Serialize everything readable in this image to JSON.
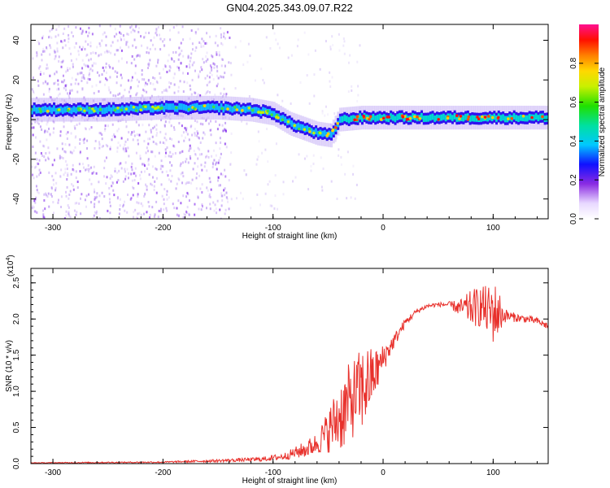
{
  "title": "GN04.2025.343.09.07.R22",
  "chart_data": [
    {
      "type": "heatmap",
      "name": "Spectrogram",
      "xlabel": "Height of straight line (km)",
      "ylabel": "Frequency (Hz)",
      "xlim": [
        -320,
        150
      ],
      "ylim": [
        -50,
        48
      ],
      "x_ticks": [
        -300,
        -200,
        -100,
        0,
        100
      ],
      "y_ticks": [
        -40,
        -20,
        0,
        20,
        40
      ],
      "colorbar": {
        "label": "Normalized spectral amplitude",
        "range": [
          0.0,
          1.0
        ],
        "ticks": [
          0.0,
          0.2,
          0.4,
          0.6,
          0.8
        ],
        "tick_labels": [
          "0.0",
          "0.2",
          "0.4",
          "0.6",
          "0.8"
        ]
      },
      "ridge": {
        "description_points_x": [
          -320,
          -250,
          -200,
          -150,
          -120,
          -100,
          -85,
          -70,
          -60,
          -48,
          -40,
          -20,
          0,
          50,
          100,
          150
        ],
        "description_points_freq": [
          5,
          5,
          6,
          6,
          5,
          3,
          -2,
          -5,
          -7,
          -8,
          0,
          1,
          1,
          1,
          1,
          1
        ]
      }
    },
    {
      "type": "line",
      "name": "SNR",
      "xlabel": "Height of straight line (km)",
      "ylabel": "SNR (10 * v/v)",
      "y_multiplier": "(x10⁴)",
      "y_multiplier_base": "(x10",
      "y_multiplier_exp": "4",
      "y_multiplier_close": ")",
      "xlim": [
        -320,
        150
      ],
      "ylim": [
        0,
        2.7
      ],
      "x_ticks": [
        -300,
        -200,
        -100,
        0,
        100
      ],
      "y_ticks": [
        0.0,
        0.5,
        1.0,
        1.5,
        2.0,
        2.5
      ],
      "y_tick_labels": [
        "0.0",
        "0.5",
        "1.0",
        "1.5",
        "2.0",
        "2.5"
      ],
      "series_color": "#e8302b",
      "envelope_x": [
        -320,
        -200,
        -150,
        -110,
        -100,
        -90,
        -80,
        -70,
        -60,
        -50,
        -45,
        -40,
        -35,
        -30,
        -25,
        -20,
        -15,
        -10,
        -5,
        0,
        10,
        20,
        30,
        40,
        50,
        60,
        70,
        80,
        90,
        95,
        100,
        105,
        110,
        120,
        130,
        140,
        150
      ],
      "envelope_mean": [
        0.01,
        0.02,
        0.04,
        0.06,
        0.08,
        0.1,
        0.15,
        0.2,
        0.28,
        0.45,
        0.55,
        0.65,
        0.75,
        0.85,
        0.95,
        1.0,
        1.1,
        1.2,
        1.3,
        1.45,
        1.7,
        1.95,
        2.1,
        2.18,
        2.2,
        2.2,
        2.15,
        2.15,
        2.18,
        2.1,
        2.1,
        2.08,
        2.05,
        2.02,
        2.0,
        1.97,
        1.9
      ],
      "envelope_noise": [
        0.005,
        0.01,
        0.02,
        0.03,
        0.04,
        0.05,
        0.08,
        0.12,
        0.15,
        0.3,
        0.4,
        0.5,
        0.55,
        0.55,
        0.55,
        0.6,
        0.55,
        0.4,
        0.3,
        0.2,
        0.1,
        0.06,
        0.04,
        0.03,
        0.03,
        0.04,
        0.12,
        0.25,
        0.3,
        0.35,
        0.45,
        0.35,
        0.1,
        0.06,
        0.05,
        0.05,
        0.05
      ]
    }
  ]
}
